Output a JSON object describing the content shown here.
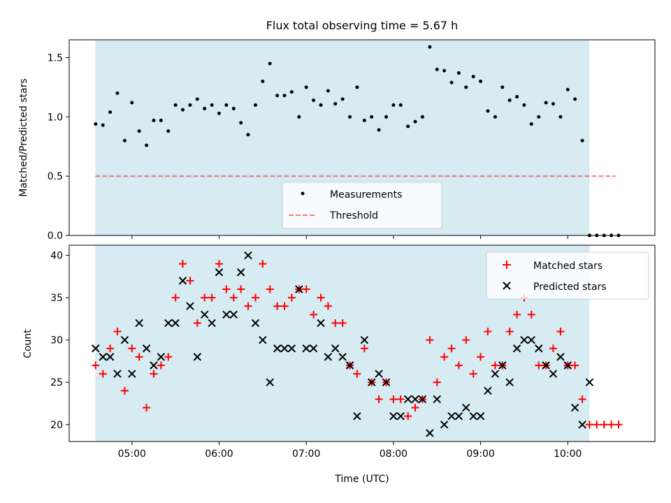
{
  "figure": {
    "title": "Flux total observing time = 5.67 h",
    "xlabel": "Time (UTC)",
    "x_ticks": [
      "05:00",
      "06:00",
      "07:00",
      "08:00",
      "09:00",
      "10:00"
    ],
    "x_tick_hours": [
      5,
      6,
      7,
      8,
      9,
      10
    ],
    "xlim": [
      4.28,
      11.0
    ],
    "colors": {
      "shade": "#add8e6",
      "measure": "#000000",
      "threshold": "#ff0000",
      "matched": "#ff0000",
      "predicted": "#000000"
    }
  },
  "chart_data": [
    {
      "type": "scatter",
      "ylabel": "Matched/Predicted stars",
      "ylim": [
        0.0,
        1.65
      ],
      "y_ticks": [
        "0.0",
        "0.5",
        "1.0",
        "1.5"
      ],
      "y_tick_values": [
        0.0,
        0.5,
        1.0,
        1.5
      ],
      "shaded_span": [
        4.58,
        10.25
      ],
      "threshold": 0.5,
      "threshold_span": [
        4.58,
        10.55
      ],
      "legend": {
        "placement": "lower center",
        "entries": [
          "Measurements",
          "Threshold"
        ]
      },
      "series": [
        {
          "name": "Measurements",
          "x": [
            4.583,
            4.667,
            4.75,
            4.833,
            4.917,
            5.0,
            5.083,
            5.167,
            5.25,
            5.333,
            5.417,
            5.5,
            5.583,
            5.667,
            5.75,
            5.833,
            5.917,
            6.0,
            6.083,
            6.167,
            6.25,
            6.333,
            6.417,
            6.5,
            6.583,
            6.667,
            6.75,
            6.833,
            6.917,
            7.0,
            7.083,
            7.167,
            7.25,
            7.333,
            7.417,
            7.5,
            7.583,
            7.667,
            7.75,
            7.833,
            7.917,
            8.0,
            8.083,
            8.167,
            8.25,
            8.333,
            8.417,
            8.5,
            8.583,
            8.667,
            8.75,
            8.833,
            8.917,
            9.0,
            9.083,
            9.167,
            9.25,
            9.333,
            9.417,
            9.5,
            9.583,
            9.667,
            9.75,
            9.833,
            9.917,
            10.0,
            10.083,
            10.167,
            10.25,
            10.333,
            10.417,
            10.5,
            10.583
          ],
          "y": [
            0.94,
            0.93,
            1.04,
            1.2,
            0.8,
            1.12,
            0.88,
            0.76,
            0.97,
            0.97,
            0.88,
            1.1,
            1.06,
            1.1,
            1.15,
            1.07,
            1.1,
            1.03,
            1.1,
            1.07,
            0.95,
            0.85,
            1.1,
            1.3,
            1.45,
            1.18,
            1.18,
            1.21,
            1.0,
            1.25,
            1.14,
            1.1,
            1.22,
            1.11,
            1.15,
            1.0,
            1.25,
            0.97,
            1.0,
            0.89,
            1.0,
            1.1,
            1.1,
            0.92,
            0.96,
            1.0,
            1.59,
            1.4,
            1.39,
            1.29,
            1.37,
            1.25,
            1.34,
            1.3,
            1.05,
            1.0,
            1.25,
            1.14,
            1.17,
            1.1,
            0.94,
            1.0,
            1.12,
            1.11,
            1.0,
            1.23,
            1.15,
            0.8,
            0.0,
            0.0,
            0.0,
            0.0,
            0.0
          ]
        }
      ]
    },
    {
      "type": "scatter",
      "ylabel": "Count",
      "ylim": [
        18.0,
        41.2
      ],
      "y_ticks": [
        "20",
        "25",
        "30",
        "35",
        "40"
      ],
      "y_tick_values": [
        20,
        25,
        30,
        35,
        40
      ],
      "shaded_span": [
        4.58,
        10.25
      ],
      "legend": {
        "placement": "upper right",
        "entries": [
          "Matched stars",
          "Predicted stars"
        ]
      },
      "series": [
        {
          "name": "Matched stars",
          "marker": "+",
          "x": [
            4.583,
            4.667,
            4.75,
            4.833,
            4.917,
            5.0,
            5.083,
            5.167,
            5.25,
            5.333,
            5.417,
            5.5,
            5.583,
            5.667,
            5.75,
            5.833,
            5.917,
            6.0,
            6.083,
            6.167,
            6.25,
            6.333,
            6.417,
            6.5,
            6.583,
            6.667,
            6.75,
            6.833,
            6.917,
            7.0,
            7.083,
            7.167,
            7.25,
            7.333,
            7.417,
            7.5,
            7.583,
            7.667,
            7.75,
            7.833,
            7.917,
            8.0,
            8.083,
            8.167,
            8.25,
            8.333,
            8.417,
            8.5,
            8.583,
            8.667,
            8.75,
            8.833,
            8.917,
            9.0,
            9.083,
            9.167,
            9.25,
            9.333,
            9.417,
            9.5,
            9.583,
            9.667,
            9.75,
            9.833,
            9.917,
            10.0,
            10.083,
            10.167,
            10.25,
            10.333,
            10.417,
            10.5,
            10.583
          ],
          "y": [
            27,
            26,
            29,
            31,
            24,
            29,
            28,
            22,
            26,
            27,
            28,
            35,
            39,
            37,
            32,
            35,
            35,
            39,
            36,
            35,
            36,
            34,
            35,
            39,
            36,
            34,
            34,
            35,
            36,
            36,
            33,
            35,
            34,
            32,
            32,
            27,
            26,
            29,
            25,
            23,
            25,
            23,
            23,
            21,
            22,
            23,
            30,
            25,
            28,
            29,
            27,
            30,
            26,
            28,
            31,
            27,
            27,
            31,
            33,
            35,
            33,
            27,
            27,
            29,
            31,
            27,
            27,
            23,
            20,
            20,
            20,
            20,
            20
          ]
        },
        {
          "name": "Predicted stars",
          "marker": "x",
          "x": [
            4.583,
            4.667,
            4.75,
            4.833,
            4.917,
            5.0,
            5.083,
            5.167,
            5.25,
            5.333,
            5.417,
            5.5,
            5.583,
            5.667,
            5.75,
            5.833,
            5.917,
            6.0,
            6.083,
            6.167,
            6.25,
            6.333,
            6.417,
            6.5,
            6.583,
            6.667,
            6.75,
            6.833,
            6.917,
            7.0,
            7.083,
            7.167,
            7.25,
            7.333,
            7.417,
            7.5,
            7.583,
            7.667,
            7.75,
            7.833,
            7.917,
            8.0,
            8.083,
            8.167,
            8.25,
            8.333,
            8.417,
            8.5,
            8.583,
            8.667,
            8.75,
            8.833,
            8.917,
            9.0,
            9.083,
            9.167,
            9.25,
            9.333,
            9.417,
            9.5,
            9.583,
            9.667,
            9.75,
            9.833,
            9.917,
            10.0,
            10.083,
            10.167,
            10.25
          ],
          "y": [
            29,
            28,
            28,
            26,
            30,
            26,
            32,
            29,
            27,
            28,
            32,
            32,
            37,
            34,
            28,
            33,
            32,
            38,
            33,
            33,
            38,
            40,
            32,
            30,
            25,
            29,
            29,
            29,
            36,
            29,
            29,
            32,
            28,
            29,
            28,
            27,
            21,
            30,
            25,
            26,
            25,
            21,
            21,
            23,
            23,
            23,
            19,
            23,
            20,
            21,
            21,
            22,
            21,
            21,
            24,
            26,
            27,
            25,
            29,
            30,
            30,
            29,
            27,
            26,
            28,
            27,
            22,
            20,
            25
          ]
        }
      ]
    }
  ]
}
